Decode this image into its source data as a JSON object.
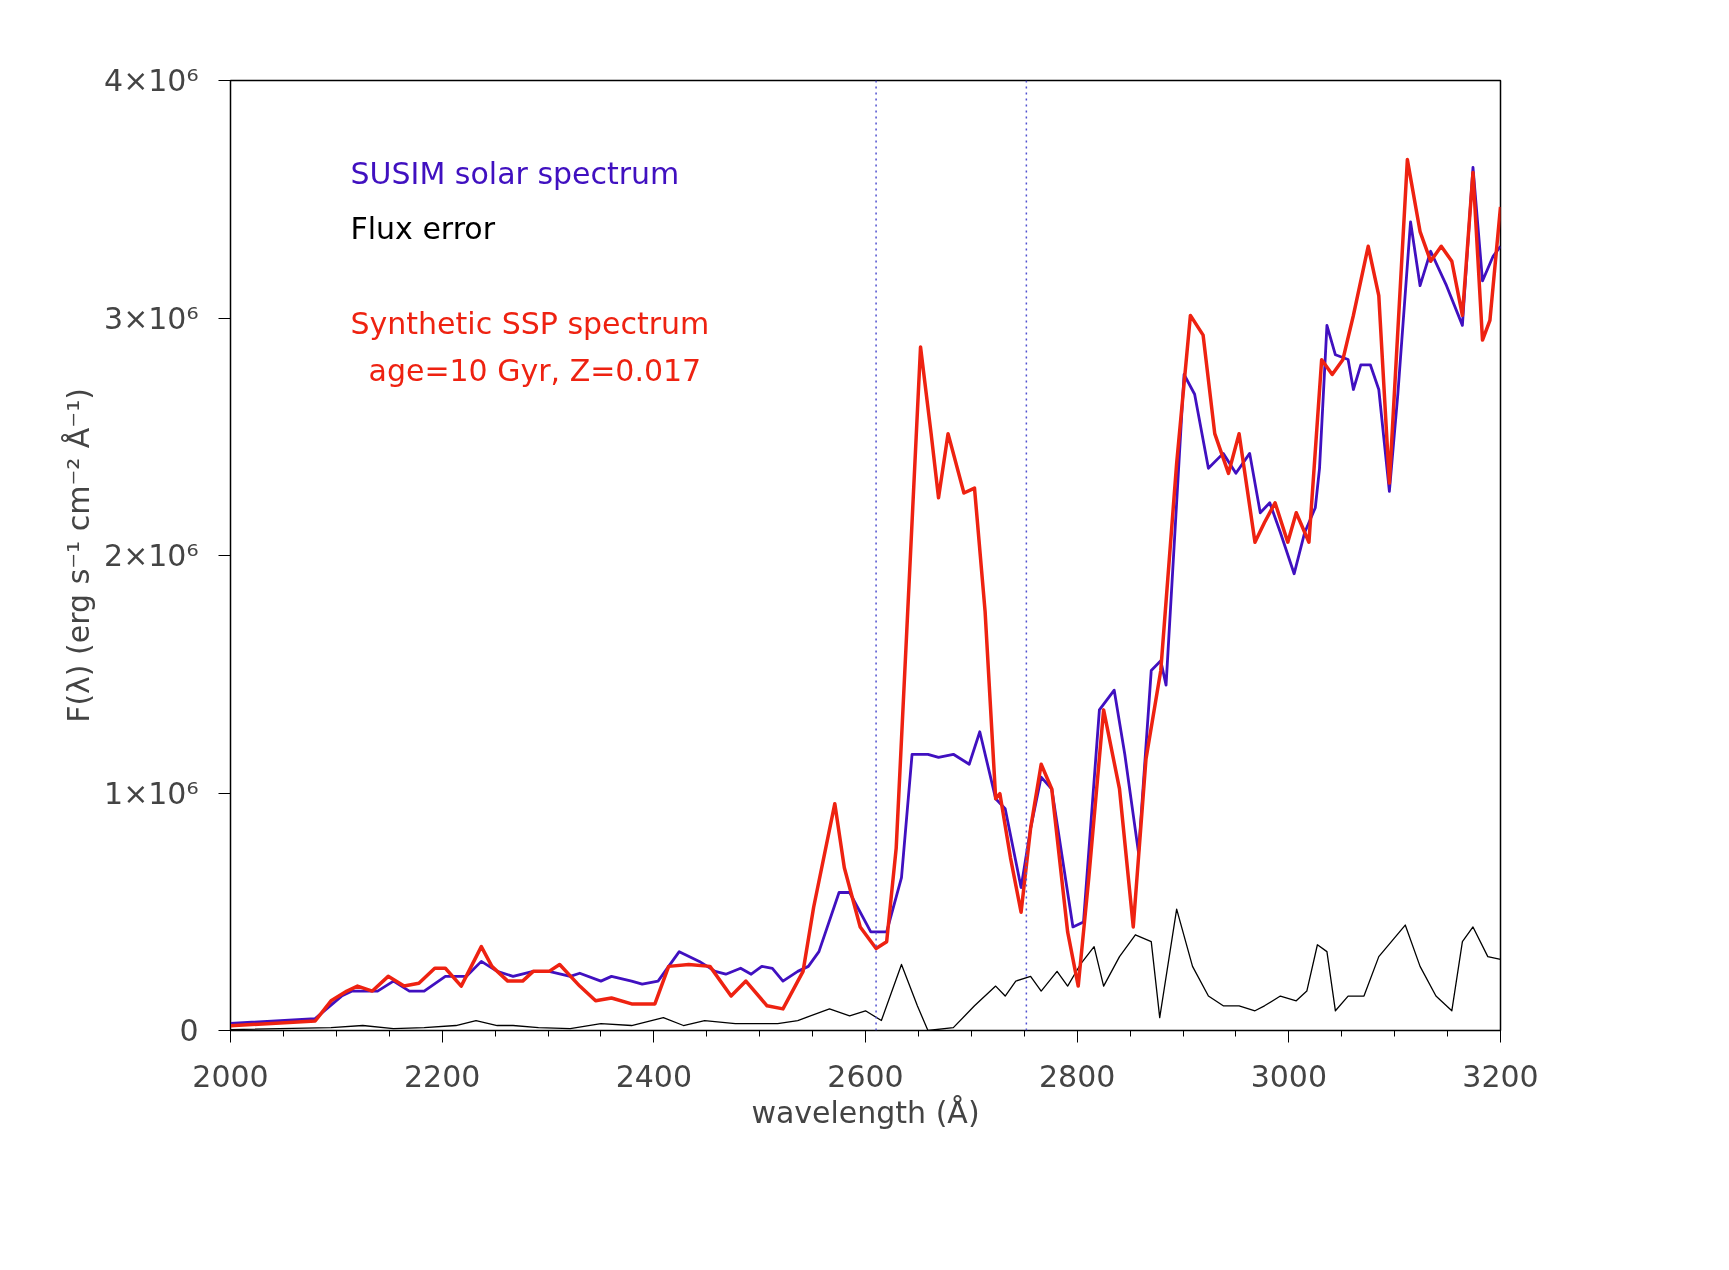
{
  "chart_data": {
    "type": "line",
    "xlabel": "wavelength (Å)",
    "ylabel": "F(λ) (erg s⁻¹ cm⁻² Å⁻¹)",
    "xlim": [
      2000,
      3200
    ],
    "xticks": [
      2000,
      2200,
      2400,
      2600,
      2800,
      3000,
      3200
    ],
    "ylim": [
      0,
      4000000
    ],
    "yticks": [
      0,
      {
        "value": 1000000,
        "label": "1×10⁶"
      },
      {
        "value": 2000000,
        "label": "2×10⁶"
      },
      {
        "value": 3000000,
        "label": "3×10⁶"
      },
      {
        "value": 4000000,
        "label": "4×10⁶"
      }
    ],
    "grid": false,
    "legend": "top left",
    "line_style": "solid",
    "marker": "none",
    "annotations": [
      "age=10 Gyr,  Z=0.017"
    ],
    "ref_lines": [
      {
        "axis": "x",
        "value": 2610,
        "color": "#5050d0",
        "line_style": "dotted"
      },
      {
        "axis": "x",
        "value": 2752,
        "color": "#5050d0",
        "line_style": "dotted"
      }
    ],
    "series": [
      {
        "name": "SUSIM solar spectrum",
        "color": "#4010c0",
        "x": [
          2000,
          2080,
          2105,
          2115,
          2139,
          2154,
          2169,
          2183,
          2203,
          2223,
          2237,
          2252,
          2267,
          2286,
          2301,
          2321,
          2330,
          2350,
          2360,
          2379,
          2389,
          2404,
          2424,
          2443,
          2458,
          2468,
          2482,
          2492,
          2502,
          2512,
          2522,
          2536,
          2546,
          2556,
          2575,
          2585,
          2605,
          2620,
          2634,
          2644,
          2659,
          2669,
          2683,
          2698,
          2708,
          2723,
          2732,
          2747,
          2756,
          2766,
          2776,
          2796,
          2806,
          2821,
          2835,
          2845,
          2858,
          2870,
          2879,
          2884,
          2901,
          2911,
          2924,
          2938,
          2950,
          2963,
          2973,
          2982,
          2992,
          3005,
          3015,
          3025,
          3029,
          3036,
          3044,
          3056,
          3061,
          3068,
          3077,
          3085,
          3095,
          3103,
          3115,
          3124,
          3134,
          3149,
          3164,
          3174,
          3183,
          3193,
          3200
        ],
        "values": [
          30000,
          50000,
          145000,
          166000,
          166000,
          208000,
          166000,
          166000,
          228000,
          228000,
          291000,
          249000,
          228000,
          249000,
          249000,
          228000,
          241000,
          208000,
          228000,
          208000,
          195000,
          208000,
          332000,
          291000,
          249000,
          237000,
          262000,
          237000,
          270000,
          262000,
          208000,
          249000,
          270000,
          332000,
          581000,
          581000,
          415000,
          415000,
          644000,
          1163000,
          1163000,
          1150000,
          1163000,
          1121000,
          1258000,
          976000,
          934000,
          602000,
          851000,
          1067000,
          1017000,
          436000,
          457000,
          1350000,
          1433000,
          1163000,
          748000,
          1516000,
          1557000,
          1454000,
          2762000,
          2679000,
          2367000,
          2430000,
          2346000,
          2430000,
          2180000,
          2222000,
          2097000,
          1923000,
          2097000,
          2201000,
          2367000,
          2969000,
          2845000,
          2825000,
          2699000,
          2803000,
          2803000,
          2699000,
          2270000,
          2679000,
          3405000,
          3136000,
          3281000,
          3136000,
          2969000,
          3634000,
          3156000,
          3260000,
          3302000
        ]
      },
      {
        "name": "Flux error",
        "color": "#000000",
        "x": [
          2000,
          2095,
          2125,
          2154,
          2183,
          2213,
          2232,
          2252,
          2267,
          2291,
          2321,
          2350,
          2379,
          2409,
          2428,
          2448,
          2477,
          2517,
          2536,
          2566,
          2585,
          2600,
          2615,
          2634,
          2649,
          2659,
          2683,
          2703,
          2723,
          2732,
          2742,
          2756,
          2766,
          2781,
          2791,
          2803,
          2816,
          2825,
          2840,
          2855,
          2870,
          2878,
          2894,
          2909,
          2924,
          2938,
          2953,
          2968,
          2977,
          2992,
          3007,
          3017,
          3027,
          3036,
          3044,
          3056,
          3071,
          3085,
          3110,
          3124,
          3139,
          3154,
          3164,
          3174,
          3188,
          3200
        ],
        "values": [
          4000,
          12000,
          21000,
          8000,
          12000,
          21000,
          42000,
          21000,
          21000,
          12000,
          8000,
          29000,
          21000,
          54000,
          21000,
          42000,
          29000,
          29000,
          42000,
          91000,
          62000,
          83000,
          42000,
          278000,
          104000,
          0,
          12000,
          104000,
          187000,
          145000,
          208000,
          228000,
          166000,
          249000,
          187000,
          278000,
          353000,
          187000,
          311000,
          403000,
          374000,
          54000,
          511000,
          270000,
          145000,
          104000,
          104000,
          83000,
          104000,
          145000,
          125000,
          166000,
          361000,
          332000,
          83000,
          145000,
          145000,
          311000,
          444000,
          270000,
          145000,
          83000,
          374000,
          436000,
          311000,
          299000
        ]
      },
      {
        "name": "Synthetic SSP spectrum",
        "color": "#ee2211",
        "x": [
          2000,
          2080,
          2095,
          2110,
          2120,
          2134,
          2149,
          2164,
          2178,
          2193,
          2203,
          2218,
          2237,
          2247,
          2262,
          2276,
          2286,
          2301,
          2311,
          2330,
          2345,
          2360,
          2379,
          2401,
          2414,
          2433,
          2453,
          2473,
          2487,
          2507,
          2522,
          2541,
          2551,
          2571,
          2580,
          2595,
          2610,
          2620,
          2629,
          2639,
          2652,
          2662,
          2669,
          2678,
          2693,
          2703,
          2713,
          2723,
          2727,
          2737,
          2747,
          2756,
          2766,
          2776,
          2791,
          2801,
          2811,
          2825,
          2840,
          2853,
          2865,
          2879,
          2894,
          2907,
          2919,
          2930,
          2943,
          2953,
          2968,
          2977,
          2987,
          2999,
          3007,
          3019,
          3031,
          3041,
          3051,
          3061,
          3075,
          3085,
          3095,
          3112,
          3124,
          3134,
          3144,
          3154,
          3164,
          3174,
          3183,
          3190,
          3200
        ],
        "values": [
          20000,
          40000,
          125000,
          166000,
          187000,
          166000,
          228000,
          187000,
          199000,
          262000,
          262000,
          187000,
          353000,
          270000,
          208000,
          208000,
          249000,
          249000,
          278000,
          187000,
          125000,
          137000,
          112000,
          112000,
          270000,
          278000,
          270000,
          145000,
          208000,
          104000,
          91000,
          249000,
          519000,
          955000,
          685000,
          436000,
          345000,
          374000,
          768000,
          1682000,
          2878000,
          2513000,
          2243000,
          2513000,
          2263000,
          2284000,
          1765000,
          976000,
          997000,
          727000,
          498000,
          851000,
          1121000,
          1017000,
          415000,
          187000,
          644000,
          1350000,
          1017000,
          436000,
          1142000,
          1516000,
          2388000,
          3011000,
          2928000,
          2513000,
          2346000,
          2513000,
          2056000,
          2139000,
          2222000,
          2056000,
          2180000,
          2056000,
          2824000,
          2762000,
          2824000,
          3011000,
          3302000,
          3094000,
          2305000,
          3667000,
          3364000,
          3239000,
          3302000,
          3239000,
          3011000,
          3613000,
          2907000,
          2990000,
          3468000
        ]
      }
    ]
  }
}
